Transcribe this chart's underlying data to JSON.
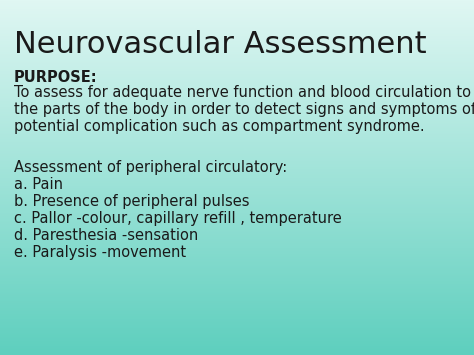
{
  "title": "Neurovascular Assessment",
  "title_color": "#1a1a1a",
  "title_fontsize": 22,
  "bg_color_top": "#e0f7f3",
  "bg_color_bottom": "#5ecfbe",
  "purpose_label": "PURPOSE:",
  "purpose_line1": "To assess for adequate nerve function and blood circulation to",
  "purpose_line2": "the parts of the body in order to detect signs and symptoms of",
  "purpose_line3": "potential complication such as compartment syndrome.",
  "section_header": "Assessment of peripheral circulatory:",
  "items": [
    "a. Pain",
    "b. Presence of peripheral pulses",
    "c. Pallor -colour, capillary refill , temperature",
    "d. Paresthesia -sensation",
    "e. Paralysis -movement"
  ],
  "text_color": "#1a1a1a",
  "body_fontsize": 10.5,
  "purpose_fontsize": 10.5,
  "header_fontsize": 10.5,
  "purpose_bold_fontsize": 10.5
}
